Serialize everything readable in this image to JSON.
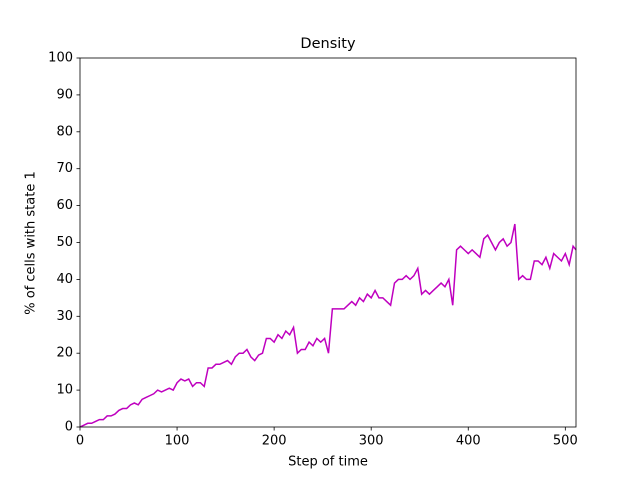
{
  "chart_data": {
    "type": "line",
    "title": "Density",
    "x_label": "Step of time",
    "y_label": "% of cells with state 1",
    "xlim": [
      0,
      511
    ],
    "ylim": [
      0,
      100
    ],
    "xticks": [
      0,
      100,
      200,
      300,
      400,
      500
    ],
    "yticks": [
      0,
      10,
      20,
      30,
      40,
      50,
      60,
      70,
      80,
      90,
      100
    ],
    "x": [
      0,
      4,
      8,
      12,
      16,
      20,
      24,
      28,
      32,
      36,
      40,
      44,
      48,
      52,
      56,
      60,
      64,
      68,
      72,
      76,
      80,
      84,
      88,
      92,
      96,
      100,
      104,
      108,
      112,
      116,
      120,
      124,
      128,
      132,
      136,
      140,
      144,
      148,
      152,
      156,
      160,
      164,
      168,
      172,
      176,
      180,
      184,
      188,
      192,
      196,
      200,
      204,
      208,
      212,
      216,
      220,
      224,
      228,
      232,
      236,
      240,
      244,
      248,
      252,
      256,
      260,
      264,
      268,
      272,
      276,
      280,
      284,
      288,
      292,
      296,
      300,
      304,
      308,
      312,
      316,
      320,
      324,
      328,
      332,
      336,
      340,
      344,
      348,
      352,
      356,
      360,
      364,
      368,
      372,
      376,
      380,
      384,
      388,
      392,
      396,
      400,
      404,
      408,
      412,
      416,
      420,
      424,
      428,
      432,
      436,
      440,
      444,
      448,
      452,
      456,
      460,
      464,
      468,
      472,
      476,
      480,
      484,
      488,
      492,
      496,
      500,
      504,
      508,
      511
    ],
    "series": [
      {
        "color": "#bf00bf",
        "values": [
          0,
          0.5,
          1,
          1,
          1.5,
          2,
          2,
          3,
          3,
          3.5,
          4.5,
          5,
          5,
          6,
          6.5,
          6,
          7.5,
          8,
          8.5,
          9,
          10,
          9.5,
          10,
          10.5,
          10,
          12,
          13,
          12.5,
          13,
          11,
          12,
          12,
          11,
          16,
          16,
          17,
          17,
          17.5,
          18,
          17,
          19,
          20,
          20,
          21,
          19,
          18,
          19.5,
          20,
          24,
          24,
          23,
          25,
          24,
          26,
          25,
          27,
          20,
          21,
          21,
          23,
          22,
          24,
          23,
          24,
          20,
          32,
          32,
          32,
          32,
          33,
          34,
          33,
          35,
          34,
          36,
          35,
          37,
          35,
          35,
          34,
          33,
          39,
          40,
          40,
          41,
          40,
          41,
          43,
          36,
          37,
          36,
          37,
          38,
          39,
          38,
          40,
          33,
          48,
          49,
          48,
          47,
          48,
          47,
          46,
          51,
          52,
          50,
          48,
          50,
          51,
          49,
          50,
          55,
          40,
          41,
          40,
          40,
          45,
          45,
          44,
          46,
          43,
          47,
          46,
          45,
          47,
          44,
          49,
          48
        ]
      }
    ]
  }
}
